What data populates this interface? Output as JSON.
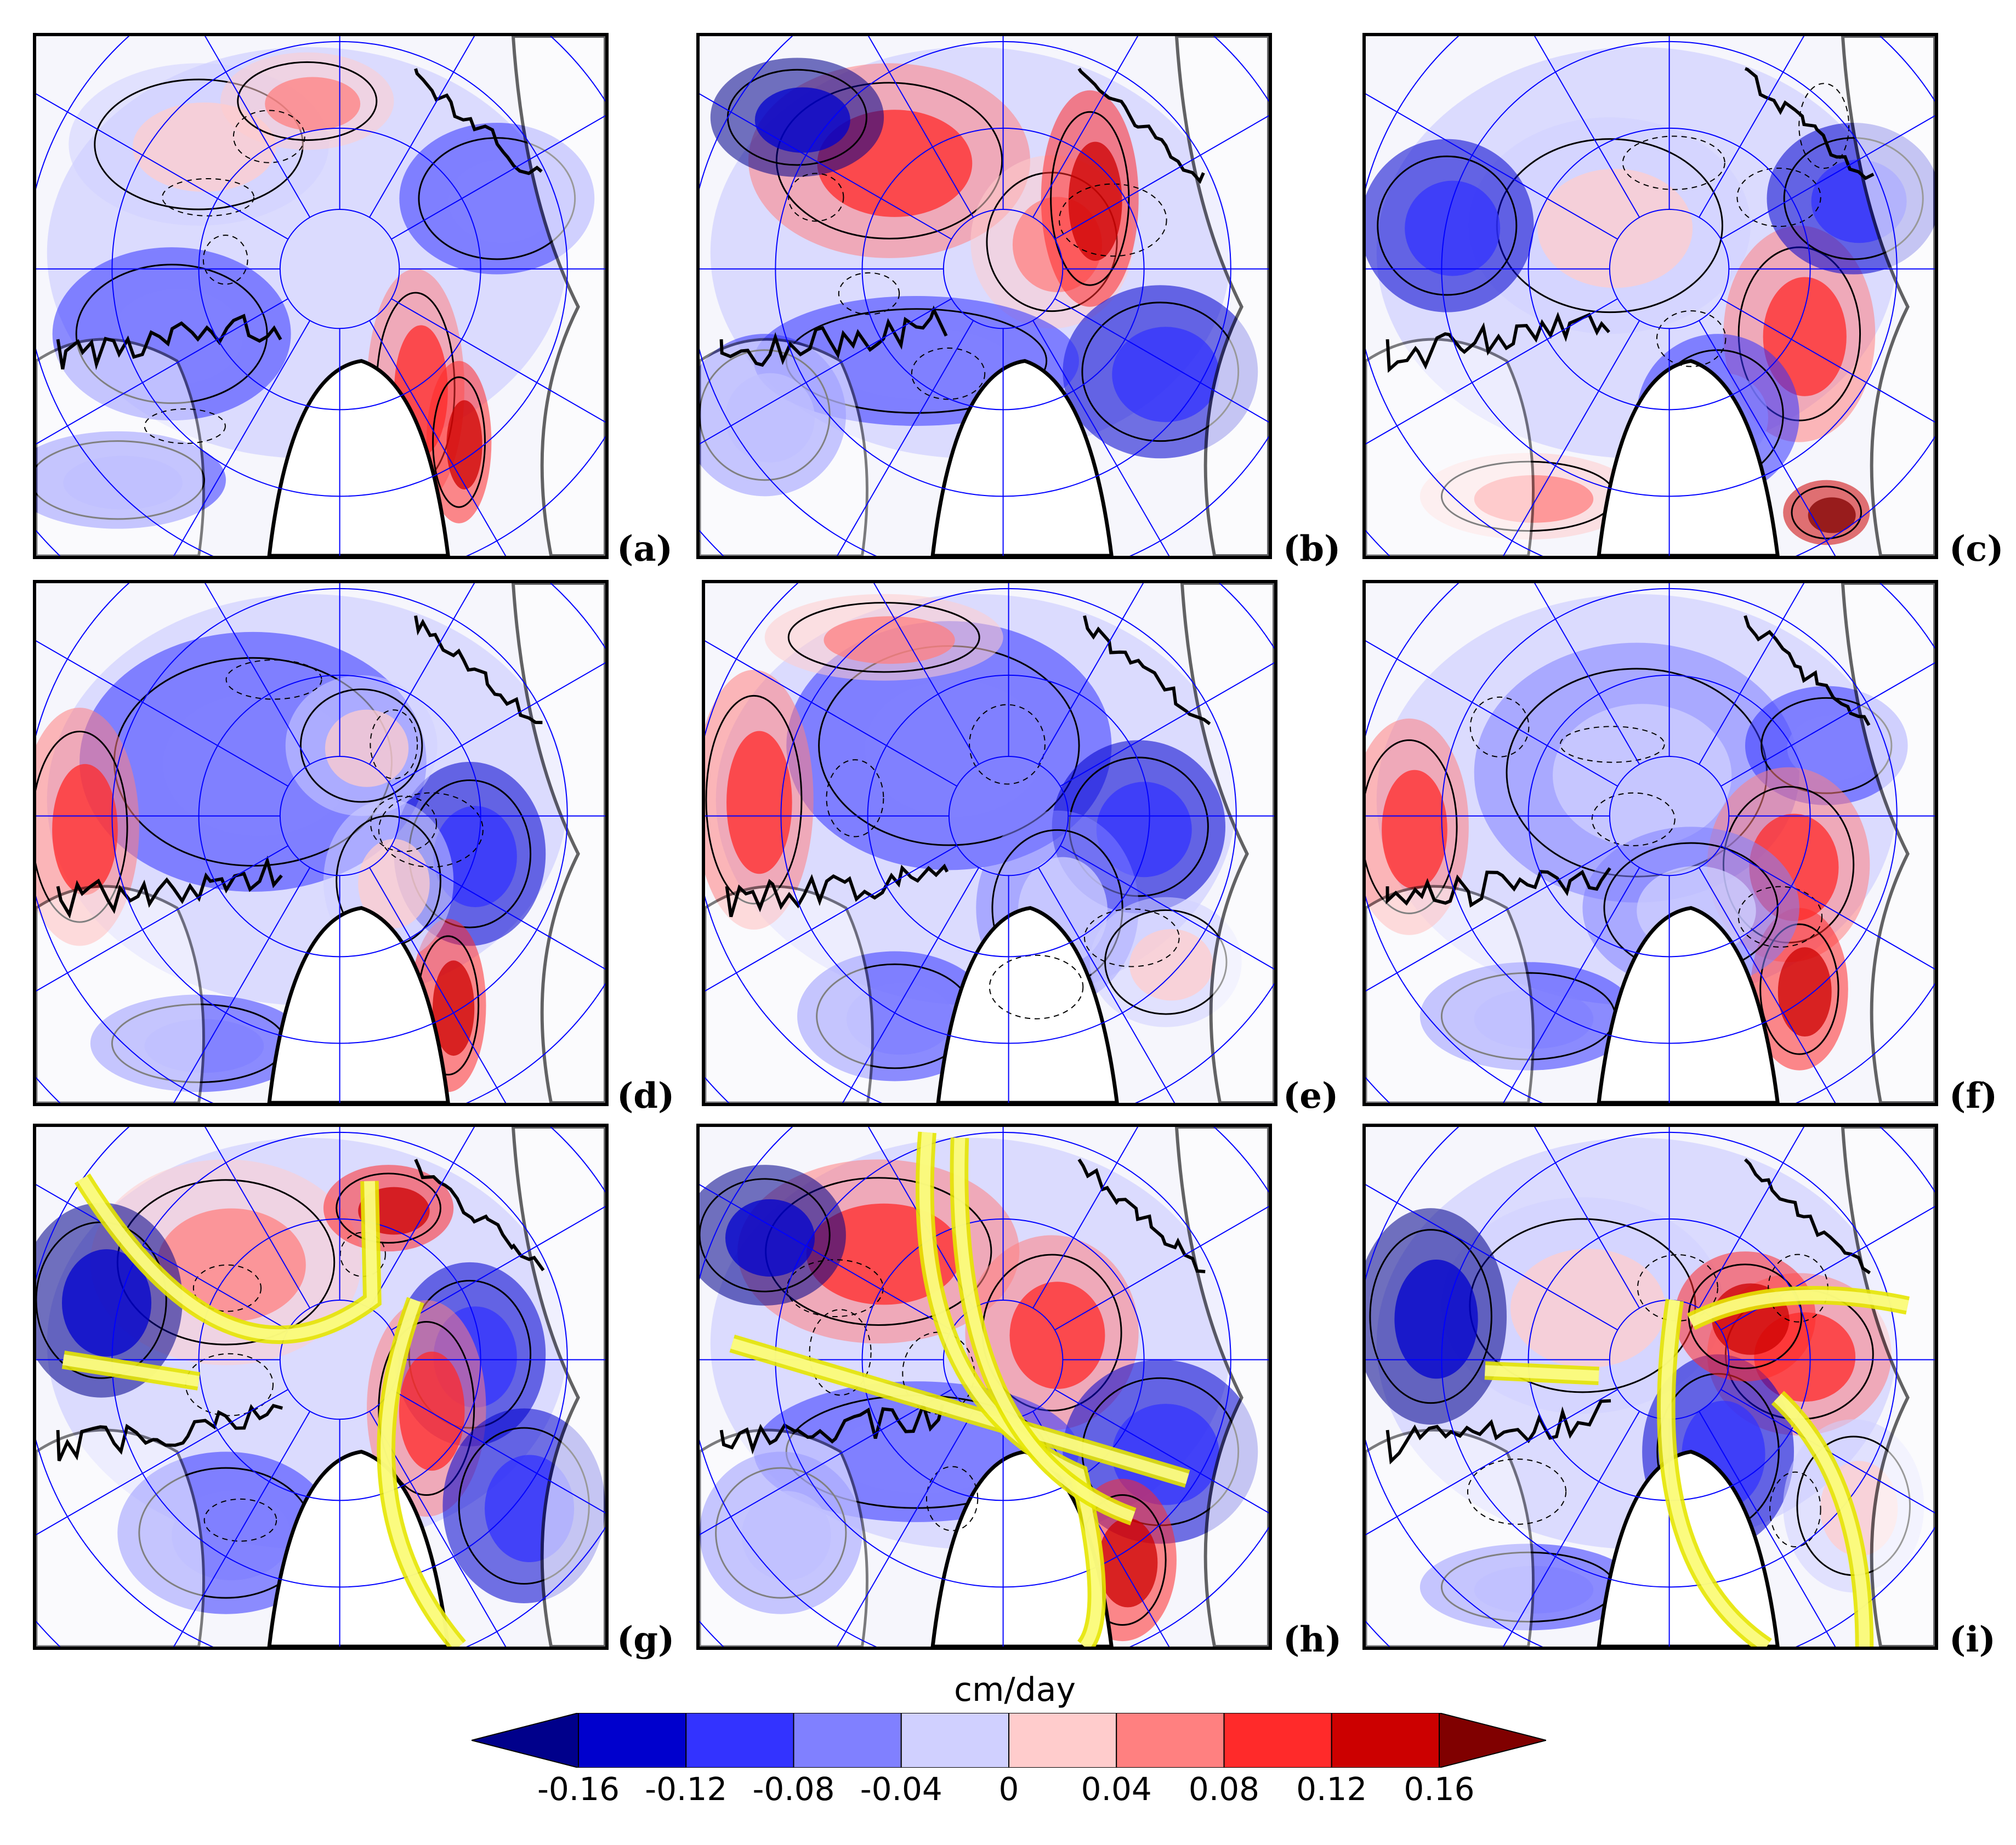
{
  "panels": [
    {
      "label": "(a)"
    },
    {
      "label": "(b)"
    },
    {
      "label": "(c)"
    },
    {
      "label": "(d)"
    },
    {
      "label": "(e)"
    },
    {
      "label": "(f)"
    },
    {
      "label": "(g)"
    },
    {
      "label": "(h)"
    },
    {
      "label": "(i)"
    }
  ],
  "colorbar": {
    "units": "cm/day",
    "ticks": [
      "-0.16",
      "-0.12",
      "-0.08",
      "-0.04",
      "0",
      "0.04",
      "0.08",
      "0.12",
      "0.16"
    ],
    "colors": [
      "#00008b",
      "#0000cd",
      "#3333ff",
      "#8080ff",
      "#d0d0ff",
      "#ffcccc",
      "#ff8080",
      "#ff2a2a",
      "#cc0000",
      "#800000"
    ]
  },
  "colors": {
    "graticule": "#0000ff",
    "arrow_stroke": "#e6e600",
    "arrow_fill": "#ffff99"
  }
}
